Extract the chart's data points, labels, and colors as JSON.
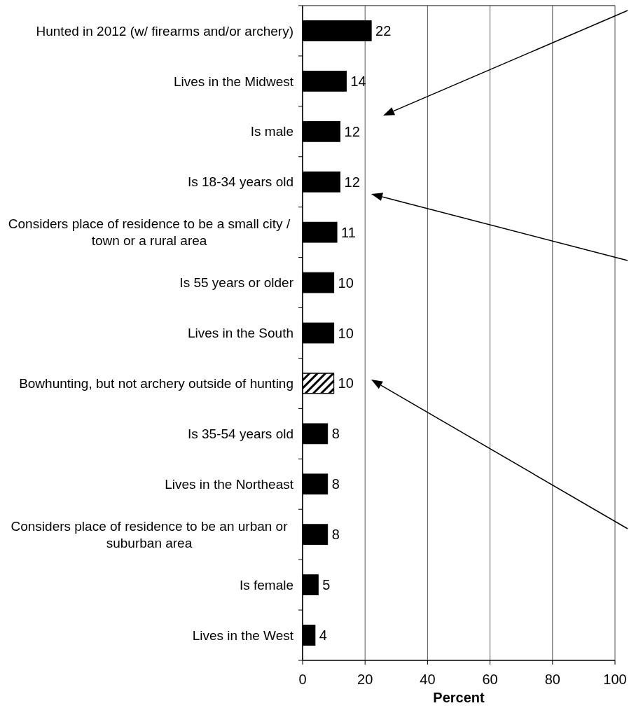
{
  "chart_data": {
    "type": "bar",
    "orientation": "horizontal",
    "xlabel": "Percent",
    "categories": [
      "Hunted in 2012 (w/ firearms and/or archery)",
      "Lives in the Midwest",
      "Is male",
      "Is 18-34 years old",
      "Considers place of residence to be a small city / town or a rural area",
      "Is 55 years or older",
      "Lives in the South",
      "Bowhunting, but not archery outside of hunting",
      "Is 35-54 years old",
      "Lives in the Northeast",
      "Considers place of residence to be an urban or suburban area",
      "Is female",
      "Lives in the West"
    ],
    "values": [
      22,
      14,
      12,
      12,
      11,
      10,
      10,
      10,
      8,
      8,
      8,
      5,
      4
    ],
    "colors": [
      "#000000",
      "#000000",
      "#000000",
      "#000000",
      "#000000",
      "#000000",
      "#000000",
      "#ffffff",
      "#000000",
      "#000000",
      "#000000",
      "#000000",
      "#000000"
    ],
    "xlim": [
      0,
      100
    ],
    "xticks": [
      0,
      20,
      40,
      60,
      80,
      100
    ],
    "grid": "x",
    "data_labels": true
  }
}
